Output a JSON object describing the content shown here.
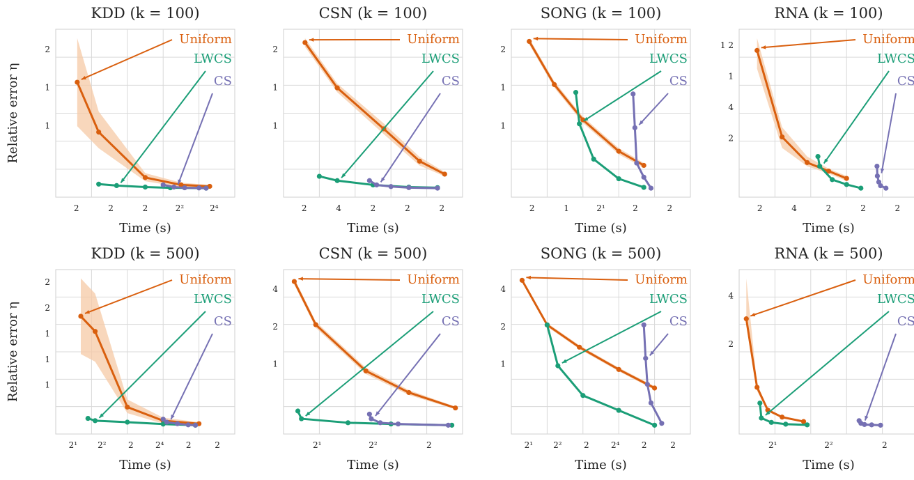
{
  "figure": {
    "series_colors": {
      "Uniform": "#d95f0e",
      "LWCS": "#1b9e77",
      "CS": "#7570b3"
    },
    "band_color": "#f6c9a6"
  },
  "chart_data": [
    {
      "type": "line",
      "title": "KDD (k = 100)",
      "xlabel": "Time (s)",
      "ylabel": "Relative error η",
      "x_tick_labels": [
        "2",
        "2",
        "2",
        "2²",
        "2⁴"
      ],
      "y_tick_labels": [
        "2",
        "1",
        "1"
      ],
      "annotations": [
        "Uniform",
        "LWCS",
        "CS"
      ],
      "series": [
        {
          "name": "Uniform",
          "points": [
            [
              0.6,
              1.9
            ],
            [
              1.2,
              1.22
            ],
            [
              2.5,
              0.6
            ],
            [
              3.5,
              0.5
            ],
            [
              4.3,
              0.48
            ]
          ],
          "band": [
            [
              0.6,
              2.5,
              1.3
            ],
            [
              1.2,
              1.5,
              1.0
            ],
            [
              2.5,
              0.66,
              0.55
            ],
            [
              3.5,
              0.53,
              0.47
            ],
            [
              4.3,
              0.5,
              0.46
            ]
          ]
        },
        {
          "name": "LWCS",
          "points": [
            [
              1.2,
              0.51
            ],
            [
              1.7,
              0.49
            ],
            [
              2.5,
              0.47
            ],
            [
              3.2,
              0.46
            ],
            [
              4.2,
              0.455
            ]
          ]
        },
        {
          "name": "CS",
          "points": [
            [
              3.0,
              0.5
            ],
            [
              3.3,
              0.47
            ],
            [
              3.6,
              0.46
            ],
            [
              4.0,
              0.458
            ],
            [
              4.2,
              0.455
            ]
          ]
        }
      ]
    },
    {
      "type": "line",
      "title": "CSN (k = 100)",
      "xlabel": "Time (s)",
      "ylabel": "",
      "x_tick_labels": [
        "2",
        "4",
        "2",
        "2",
        "2"
      ],
      "y_tick_labels": [
        "2",
        "1",
        "1"
      ],
      "annotations": [
        "Uniform",
        "LWCS",
        "CS"
      ],
      "series": [
        {
          "name": "Uniform",
          "points": [
            [
              0.6,
              2.0
            ],
            [
              1.5,
              1.58
            ],
            [
              2.8,
              1.2
            ],
            [
              3.8,
              0.9
            ],
            [
              4.5,
              0.78
            ]
          ],
          "band": [
            [
              0.6,
              2.04,
              1.96
            ],
            [
              1.5,
              1.62,
              1.54
            ],
            [
              2.8,
              1.25,
              1.15
            ],
            [
              3.8,
              0.94,
              0.86
            ],
            [
              4.5,
              0.8,
              0.76
            ]
          ]
        },
        {
          "name": "LWCS",
          "points": [
            [
              1.0,
              0.76
            ],
            [
              1.5,
              0.72
            ],
            [
              2.5,
              0.68
            ],
            [
              3.5,
              0.66
            ],
            [
              4.3,
              0.655
            ]
          ]
        },
        {
          "name": "CS",
          "points": [
            [
              2.4,
              0.72
            ],
            [
              2.6,
              0.68
            ],
            [
              3.0,
              0.665
            ],
            [
              3.5,
              0.655
            ],
            [
              4.3,
              0.65
            ]
          ]
        }
      ]
    },
    {
      "type": "line",
      "title": "SONG (k = 100)",
      "xlabel": "Time (s)",
      "ylabel": "",
      "x_tick_labels": [
        "2",
        "1",
        "2¹",
        "2",
        "2"
      ],
      "y_tick_labels": [
        "2",
        "1",
        "1"
      ],
      "annotations": [
        "Uniform",
        "LWCS",
        "CS"
      ],
      "series": [
        {
          "name": "Uniform",
          "points": [
            [
              0.5,
              2.6
            ],
            [
              1.2,
              2.05
            ],
            [
              2.0,
              1.6
            ],
            [
              3.0,
              1.2
            ],
            [
              3.7,
              1.02
            ]
          ],
          "band": [
            [
              0.5,
              2.64,
              2.56
            ],
            [
              1.2,
              2.09,
              2.01
            ],
            [
              2.0,
              1.64,
              1.56
            ],
            [
              3.0,
              1.24,
              1.16
            ],
            [
              3.7,
              1.05,
              0.99
            ]
          ]
        },
        {
          "name": "LWCS",
          "points": [
            [
              1.8,
              1.95
            ],
            [
              1.9,
              1.55
            ],
            [
              2.3,
              1.1
            ],
            [
              3.0,
              0.85
            ],
            [
              3.7,
              0.74
            ]
          ]
        },
        {
          "name": "CS",
          "points": [
            [
              3.4,
              1.93
            ],
            [
              3.45,
              1.5
            ],
            [
              3.5,
              1.05
            ],
            [
              3.7,
              0.87
            ],
            [
              3.9,
              0.73
            ]
          ]
        }
      ]
    },
    {
      "type": "line",
      "title": "RNA (k = 100)",
      "xlabel": "Time (s)",
      "ylabel": "",
      "x_tick_labels": [
        "2",
        "4",
        "2",
        "2",
        "2"
      ],
      "y_tick_labels": [
        "1 2",
        "1",
        "4",
        "2"
      ],
      "annotations": [
        "Uniform",
        "LWCS",
        "CS"
      ],
      "series": [
        {
          "name": "Uniform",
          "points": [
            [
              0.5,
              1.85
            ],
            [
              1.2,
              1.14
            ],
            [
              1.9,
              0.93
            ],
            [
              2.5,
              0.86
            ],
            [
              3.0,
              0.8
            ]
          ],
          "band": [
            [
              0.5,
              1.95,
              1.7
            ],
            [
              1.2,
              1.22,
              1.05
            ],
            [
              1.9,
              0.98,
              0.9
            ],
            [
              2.5,
              0.88,
              0.84
            ],
            [
              3.0,
              0.82,
              0.78
            ]
          ]
        },
        {
          "name": "LWCS",
          "points": [
            [
              2.2,
              0.98
            ],
            [
              2.25,
              0.9
            ],
            [
              2.6,
              0.79
            ],
            [
              3.0,
              0.75
            ],
            [
              3.4,
              0.72
            ]
          ]
        },
        {
          "name": "CS",
          "points": [
            [
              3.85,
              0.9
            ],
            [
              3.86,
              0.82
            ],
            [
              3.9,
              0.77
            ],
            [
              3.95,
              0.74
            ],
            [
              4.1,
              0.72
            ]
          ]
        }
      ]
    },
    {
      "type": "line",
      "title": "KDD (k = 500)",
      "xlabel": "Time (s)",
      "ylabel": "Relative error η",
      "x_tick_labels": [
        "2¹",
        "2²",
        "2",
        "2⁴",
        "2",
        "2"
      ],
      "y_tick_labels": [
        "2",
        "2",
        "1",
        "1",
        "1"
      ],
      "annotations": [
        "Uniform",
        "LWCS",
        "CS"
      ],
      "series": [
        {
          "name": "Uniform",
          "points": [
            [
              0.7,
              2.0
            ],
            [
              1.1,
              1.8
            ],
            [
              2.0,
              0.8
            ],
            [
              3.0,
              0.62
            ],
            [
              4.0,
              0.58
            ]
          ],
          "band": [
            [
              0.7,
              2.5,
              1.5
            ],
            [
              1.1,
              2.3,
              1.4
            ],
            [
              2.0,
              0.9,
              0.72
            ],
            [
              3.0,
              0.66,
              0.58
            ],
            [
              4.0,
              0.6,
              0.56
            ]
          ]
        },
        {
          "name": "LWCS",
          "points": [
            [
              0.9,
              0.65
            ],
            [
              1.1,
              0.62
            ],
            [
              2.0,
              0.6
            ],
            [
              3.0,
              0.575
            ],
            [
              3.9,
              0.56
            ]
          ]
        },
        {
          "name": "CS",
          "points": [
            [
              3.0,
              0.64
            ],
            [
              3.1,
              0.6
            ],
            [
              3.4,
              0.58
            ],
            [
              3.7,
              0.565
            ],
            [
              3.9,
              0.56
            ]
          ]
        }
      ]
    },
    {
      "type": "line",
      "title": "CSN (k = 500)",
      "xlabel": "Time (s)",
      "ylabel": "",
      "x_tick_labels": [
        "2¹",
        "2²",
        "2"
      ],
      "y_tick_labels": [
        "4",
        "2",
        "1"
      ],
      "annotations": [
        "Uniform",
        "LWCS",
        "CS"
      ],
      "series": [
        {
          "name": "Uniform",
          "points": [
            [
              0.3,
              5.0
            ],
            [
              0.9,
              3.6
            ],
            [
              2.3,
              2.1
            ],
            [
              3.5,
              1.4
            ],
            [
              4.8,
              0.9
            ]
          ],
          "band": [
            [
              0.3,
              5.1,
              4.9
            ],
            [
              0.9,
              3.7,
              3.5
            ],
            [
              2.3,
              2.2,
              2.0
            ],
            [
              3.5,
              1.48,
              1.32
            ],
            [
              4.8,
              0.94,
              0.86
            ]
          ]
        },
        {
          "name": "LWCS",
          "points": [
            [
              0.4,
              0.8
            ],
            [
              0.5,
              0.55
            ],
            [
              1.8,
              0.42
            ],
            [
              3.0,
              0.38
            ],
            [
              4.7,
              0.34
            ]
          ]
        },
        {
          "name": "CS",
          "points": [
            [
              2.4,
              0.7
            ],
            [
              2.45,
              0.55
            ],
            [
              2.7,
              0.42
            ],
            [
              3.2,
              0.38
            ],
            [
              4.6,
              0.34
            ]
          ]
        }
      ]
    },
    {
      "type": "line",
      "title": "SONG (k = 500)",
      "xlabel": "Time (s)",
      "ylabel": "",
      "x_tick_labels": [
        "2¹",
        "2²",
        "2",
        "2⁴",
        "2",
        "2"
      ],
      "y_tick_labels": [
        "4",
        "2",
        "1"
      ],
      "annotations": [
        "Uniform",
        "LWCS",
        "CS"
      ],
      "series": [
        {
          "name": "Uniform",
          "points": [
            [
              0.3,
              4.4
            ],
            [
              1.0,
              3.2
            ],
            [
              1.9,
              2.6
            ],
            [
              3.0,
              2.0
            ],
            [
              4.0,
              1.5
            ]
          ],
          "band": [
            [
              0.3,
              4.45,
              4.35
            ],
            [
              1.0,
              3.25,
              3.15
            ],
            [
              1.9,
              2.65,
              2.55
            ],
            [
              3.0,
              2.05,
              1.95
            ],
            [
              4.0,
              1.55,
              1.45
            ]
          ]
        },
        {
          "name": "LWCS",
          "points": [
            [
              1.0,
              3.2
            ],
            [
              1.3,
              2.1
            ],
            [
              2.0,
              1.3
            ],
            [
              3.0,
              0.9
            ],
            [
              4.0,
              0.5
            ]
          ]
        },
        {
          "name": "CS",
          "points": [
            [
              3.7,
              3.2
            ],
            [
              3.75,
              2.3
            ],
            [
              3.8,
              1.6
            ],
            [
              3.9,
              1.1
            ],
            [
              4.2,
              0.55
            ]
          ]
        }
      ]
    },
    {
      "type": "line",
      "title": "RNA (k = 500)",
      "xlabel": "Time (s)",
      "ylabel": "",
      "x_tick_labels": [
        "2¹",
        "2²",
        "2"
      ],
      "y_tick_labels": [
        "4",
        "2"
      ],
      "annotations": [
        "Uniform",
        "LWCS",
        "CS"
      ],
      "series": [
        {
          "name": "Uniform",
          "points": [
            [
              0.2,
              6.5
            ],
            [
              0.5,
              2.6
            ],
            [
              0.8,
              1.3
            ],
            [
              1.2,
              0.9
            ],
            [
              1.8,
              0.65
            ]
          ],
          "band": [
            [
              0.2,
              8.8,
              6.1
            ],
            [
              0.5,
              2.8,
              2.4
            ],
            [
              0.8,
              1.4,
              1.2
            ],
            [
              1.2,
              0.95,
              0.85
            ],
            [
              1.8,
              0.68,
              0.62
            ]
          ]
        },
        {
          "name": "LWCS",
          "points": [
            [
              0.58,
              1.7
            ],
            [
              0.62,
              0.85
            ],
            [
              0.9,
              0.6
            ],
            [
              1.3,
              0.5
            ],
            [
              1.9,
              0.46
            ]
          ]
        },
        {
          "name": "CS",
          "points": [
            [
              3.35,
              0.7
            ],
            [
              3.4,
              0.55
            ],
            [
              3.5,
              0.48
            ],
            [
              3.7,
              0.46
            ],
            [
              3.95,
              0.44
            ]
          ]
        }
      ]
    }
  ]
}
